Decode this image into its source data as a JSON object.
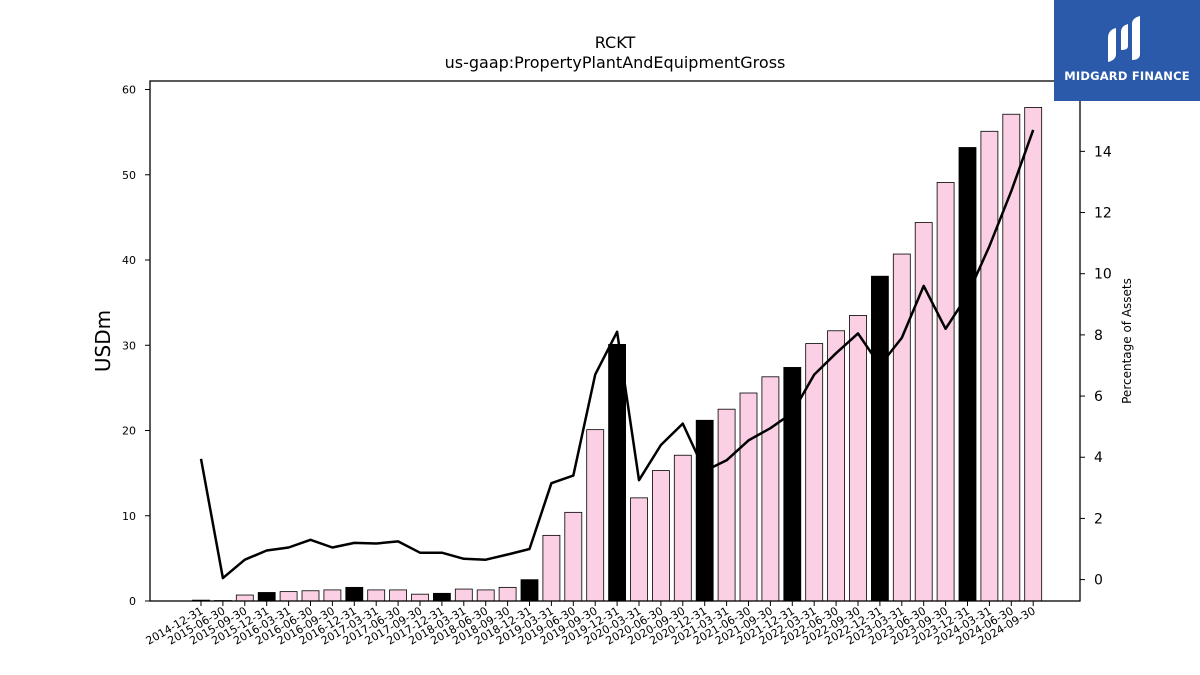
{
  "chart_data": {
    "type": "bar",
    "title": "RCKT",
    "subtitle": "us-gaap:PropertyPlantAndEquipmentGross",
    "ylabel": "USDm",
    "y2label": "Percentage of Assets",
    "ylim": [
      0,
      61
    ],
    "y2lim": [
      -0.7,
      16.3
    ],
    "yticks": [
      0,
      10,
      20,
      30,
      40,
      50,
      60
    ],
    "y2ticks": [
      0,
      2,
      4,
      6,
      8,
      10,
      12,
      14
    ],
    "categories": [
      "2014-12-31",
      "2015-06-30",
      "2015-09-30",
      "2015-12-31",
      "2016-03-31",
      "2016-06-30",
      "2016-09-30",
      "2016-12-31",
      "2017-03-31",
      "2017-06-30",
      "2017-09-30",
      "2017-12-31",
      "2018-03-31",
      "2018-06-30",
      "2018-09-30",
      "2018-12-31",
      "2019-03-31",
      "2019-06-30",
      "2019-09-30",
      "2019-12-31",
      "2020-03-31",
      "2020-06-30",
      "2020-09-30",
      "2020-12-31",
      "2021-03-31",
      "2021-06-30",
      "2021-09-30",
      "2021-12-31",
      "2022-03-31",
      "2022-06-30",
      "2022-09-30",
      "2022-12-31",
      "2023-03-31",
      "2023-06-30",
      "2023-09-30",
      "2023-12-31",
      "2024-03-31",
      "2024-06-30",
      "2024-09-30"
    ],
    "series": [
      {
        "kind": "bar",
        "values": [
          0.1,
          0.05,
          0.7,
          1.0,
          1.1,
          1.2,
          1.3,
          1.6,
          1.3,
          1.3,
          0.8,
          0.9,
          1.4,
          1.3,
          1.6,
          2.5,
          7.7,
          10.4,
          20.1,
          30.1,
          12.1,
          15.3,
          17.1,
          21.2,
          22.5,
          24.4,
          26.3,
          27.4,
          30.2,
          31.7,
          33.5,
          38.1,
          40.7,
          44.4,
          49.1,
          53.2,
          55.1,
          57.1,
          57.9
        ],
        "year_end": [
          true,
          false,
          false,
          true,
          false,
          false,
          false,
          true,
          false,
          false,
          false,
          true,
          false,
          false,
          false,
          true,
          false,
          false,
          false,
          true,
          false,
          false,
          false,
          true,
          false,
          false,
          false,
          true,
          false,
          false,
          false,
          true,
          false,
          false,
          false,
          true,
          false,
          false,
          false
        ]
      },
      {
        "kind": "line",
        "axis": "right",
        "values": [
          3.95,
          0.05,
          0.65,
          0.95,
          1.05,
          1.3,
          1.05,
          1.2,
          1.18,
          1.25,
          0.88,
          0.88,
          0.68,
          0.65,
          0.82,
          1.0,
          3.15,
          3.4,
          6.7,
          8.1,
          3.25,
          4.4,
          5.1,
          3.55,
          3.9,
          4.55,
          4.95,
          5.45,
          6.7,
          7.4,
          8.05,
          7.0,
          7.9,
          9.6,
          8.2,
          9.3,
          10.9,
          12.7,
          14.7
        ]
      }
    ],
    "colors": {
      "bar": "#fbcfe4",
      "bar_year_end": "#000000",
      "line": "#000000"
    }
  },
  "logo": {
    "text": "MIDGARD FINANCE",
    "bg": "#2b5aab"
  }
}
